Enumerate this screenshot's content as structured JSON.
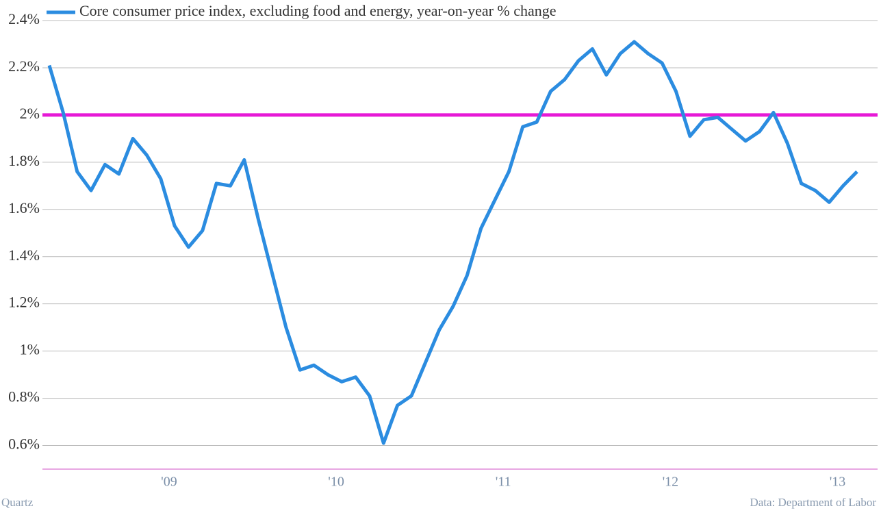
{
  "chart_data": {
    "type": "line",
    "categories": [
      null,
      null,
      null,
      null,
      null,
      null,
      null,
      null,
      null,
      "'09",
      null,
      null,
      null,
      null,
      null,
      null,
      null,
      null,
      null,
      null,
      null,
      "'10",
      null,
      null,
      null,
      null,
      null,
      null,
      null,
      null,
      null,
      null,
      null,
      "'11",
      null,
      null,
      null,
      null,
      null,
      null,
      null,
      null,
      null,
      null,
      null,
      "'12",
      null,
      null,
      null,
      null,
      null,
      null,
      null,
      null,
      null,
      null,
      null,
      "'13",
      null
    ],
    "series": [
      {
        "name": "Core consumer price index, excluding food and energy, year-on-year % change",
        "color": "#2b8ce0",
        "values": [
          2.21,
          2.01,
          1.76,
          1.68,
          1.79,
          1.75,
          1.9,
          1.83,
          1.73,
          1.53,
          1.44,
          1.51,
          1.71,
          1.7,
          1.81,
          1.56,
          1.33,
          1.1,
          0.92,
          0.94,
          0.9,
          0.87,
          0.89,
          0.81,
          0.61,
          0.77,
          0.81,
          0.95,
          1.09,
          1.19,
          1.32,
          1.52,
          1.64,
          1.76,
          1.95,
          1.97,
          2.1,
          2.15,
          2.23,
          2.28,
          2.17,
          2.26,
          2.31,
          2.26,
          2.22,
          2.1,
          1.91,
          1.98,
          1.99,
          1.94,
          1.89,
          1.93,
          2.01,
          1.88,
          1.71,
          1.68,
          1.63,
          1.7,
          1.76
        ]
      }
    ],
    "ylim": [
      0.5,
      2.4
    ],
    "yticks": [
      {
        "value": 0.6,
        "label": "0.6%"
      },
      {
        "value": 0.8,
        "label": "0.8%"
      },
      {
        "value": 1,
        "label": "1%"
      },
      {
        "value": 1.2,
        "label": "1.2%"
      },
      {
        "value": 1.4,
        "label": "1.4%"
      },
      {
        "value": 1.6,
        "label": "1.6%"
      },
      {
        "value": 1.8,
        "label": "1.8%"
      },
      {
        "value": 2,
        "label": "2%"
      },
      {
        "value": 2.2,
        "label": "2.2%"
      },
      {
        "value": 2.4,
        "label": "2.4%"
      }
    ],
    "grid": true,
    "reference_line": {
      "value": 2,
      "color": "#e619d6"
    },
    "legend": "top-left",
    "credit": "Quartz",
    "source": "Data: Department of Labor"
  }
}
